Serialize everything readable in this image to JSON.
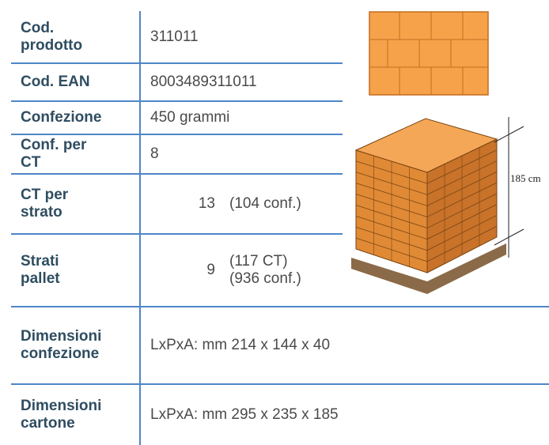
{
  "table": {
    "rows": [
      {
        "label": [
          "Cod.",
          "prodotto"
        ],
        "value": "311011"
      },
      {
        "label": [
          "Cod. EAN"
        ],
        "value": "8003489311011"
      },
      {
        "label": [
          "Confezione"
        ],
        "value": "450 grammi"
      },
      {
        "label": [
          "Conf. per",
          "CT"
        ],
        "value": "8"
      },
      {
        "label": [
          "CT per",
          "strato"
        ],
        "value": "13",
        "notes": [
          "(104 conf.)"
        ]
      },
      {
        "label": [
          "Strati",
          "pallet"
        ],
        "value": "9",
        "notes": [
          "(117 CT)",
          "(936 conf.)"
        ]
      },
      {
        "label": [
          "Dimensioni",
          "confezione"
        ],
        "value": "LxPxA: mm 214 x 144 x 40"
      },
      {
        "label": [
          "Dimensioni",
          "cartone"
        ],
        "value": "LxPxA: mm 295 x 235 x 185"
      }
    ]
  },
  "pallet_image": {
    "height_label": "185 cm"
  }
}
